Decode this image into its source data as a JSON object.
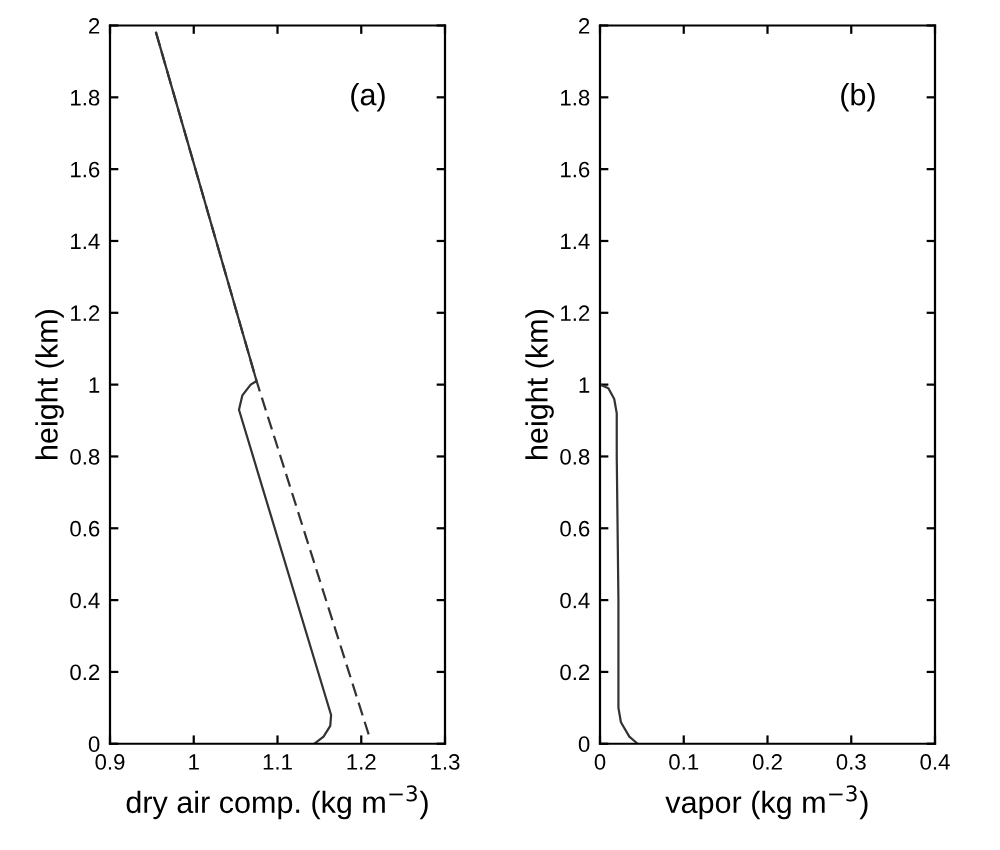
{
  "chart_data": [
    {
      "type": "line",
      "xlabel": "dry air comp. (kg m$^{−3}$)",
      "ylabel": "height (km)",
      "annotations": [
        "(a)"
      ],
      "xlim": [
        0.9,
        1.3
      ],
      "xticks": [
        0.9,
        1,
        1.1,
        1.2,
        1.3
      ],
      "ylim": [
        0,
        2
      ],
      "yticks": [
        0,
        0.2,
        0.4,
        0.6,
        0.8,
        1,
        1.2,
        1.4,
        1.6,
        1.8,
        2
      ],
      "grid": false,
      "legend": false,
      "series": [
        {
          "color": "#333333",
          "line_style": "solid",
          "x": [
            0.955,
            1.075,
            1.068,
            1.058,
            1.054,
            1.164,
            1.163,
            1.155,
            1.144
          ],
          "values": [
            1.98,
            1.01,
            1.0,
            0.97,
            0.93,
            0.08,
            0.05,
            0.02,
            0
          ]
        },
        {
          "color": "#333333",
          "line_style": "dashed",
          "x": [
            0.955,
            1.075,
            1.211
          ],
          "values": [
            1.98,
            1.01,
            0.01
          ]
        }
      ]
    },
    {
      "type": "line",
      "xlabel": "vapor (kg m$^{−3}$)",
      "ylabel": "height (km)",
      "annotations": [
        "(b)"
      ],
      "xlim": [
        0,
        0.4
      ],
      "xticks": [
        0,
        0.1,
        0.2,
        0.3,
        0.4
      ],
      "ylim": [
        0,
        2
      ],
      "yticks": [
        0,
        0.2,
        0.4,
        0.6,
        0.8,
        1,
        1.2,
        1.4,
        1.6,
        1.8,
        2
      ],
      "grid": false,
      "legend": false,
      "series": [
        {
          "color": "#333333",
          "line_style": "solid",
          "x": [
            0,
            0.01,
            0.017,
            0.02,
            0.02,
            0.022,
            0.022,
            0.025,
            0.035,
            0.045
          ],
          "values": [
            1.0,
            0.99,
            0.96,
            0.92,
            0.8,
            0.4,
            0.1,
            0.06,
            0.02,
            0
          ]
        }
      ]
    }
  ]
}
